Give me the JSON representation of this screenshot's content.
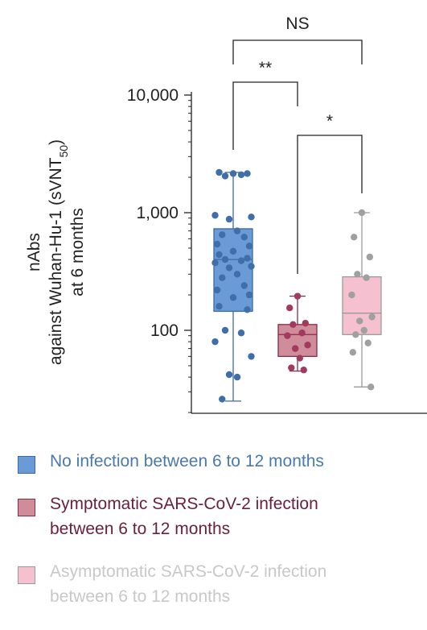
{
  "chart_data": {
    "type": "box",
    "ylabel": {
      "line1": "nAbs",
      "line2_prefix": "against Wuhan-Hu-1 (sVNT",
      "line2_sub": "50",
      "line2_suffix": ")",
      "line3": "at 6 months"
    },
    "yscale": "log",
    "ylim": [
      20,
      12000
    ],
    "yticks": [
      {
        "value": 10000,
        "label": "10,000"
      },
      {
        "value": 1000,
        "label": "1,000"
      },
      {
        "value": 100,
        "label": "100"
      }
    ],
    "series": [
      {
        "name": "No infection between 6 to 12 months",
        "color": "#6a9bd6",
        "edge": "#3b6aa8",
        "point": "#3f6ea8",
        "box": {
          "whislo": 25,
          "q1": 145,
          "median": 400,
          "q3": 730,
          "whishi": 2200
        },
        "points": [
          2150,
          2200,
          2150,
          2050,
          2100,
          950,
          920,
          880,
          700,
          650,
          620,
          540,
          520,
          470,
          440,
          410,
          400,
          390,
          375,
          350,
          340,
          300,
          280,
          240,
          220,
          200,
          190,
          160,
          150,
          100,
          95,
          80,
          60,
          42,
          40,
          26
        ]
      },
      {
        "name": "Symptomatic SARS-CoV-2 infection\nbetween 6 to 12 months",
        "color": "#cf8c9a",
        "edge": "#8a2a48",
        "point": "#a23a5e",
        "box": {
          "whislo": 45,
          "q1": 60,
          "median": 92,
          "q3": 112,
          "whishi": 195
        },
        "points": [
          195,
          155,
          115,
          112,
          95,
          90,
          75,
          70,
          58,
          48,
          46
        ]
      },
      {
        "name": "Asymptomatic SARS-CoV-2 infection\nbetween 6 to 12 months",
        "color": "#f5c0d0",
        "edge": "#9a9a9a",
        "point": "#a0a0a0",
        "box": {
          "whislo": 33,
          "q1": 92,
          "median": 140,
          "q3": 285,
          "whishi": 1000
        },
        "points": [
          1000,
          620,
          420,
          300,
          280,
          200,
          130,
          120,
          100,
          92,
          78,
          65,
          33
        ]
      }
    ],
    "comparisons": [
      {
        "groups": [
          1,
          3
        ],
        "label": "NS"
      },
      {
        "groups": [
          1,
          2
        ],
        "label": "**"
      },
      {
        "groups": [
          2,
          3
        ],
        "label": "*"
      }
    ]
  },
  "legend_colors": {
    "text": [
      "#4a7aaa",
      "#6a1f3c",
      "#c8c8c8"
    ]
  }
}
